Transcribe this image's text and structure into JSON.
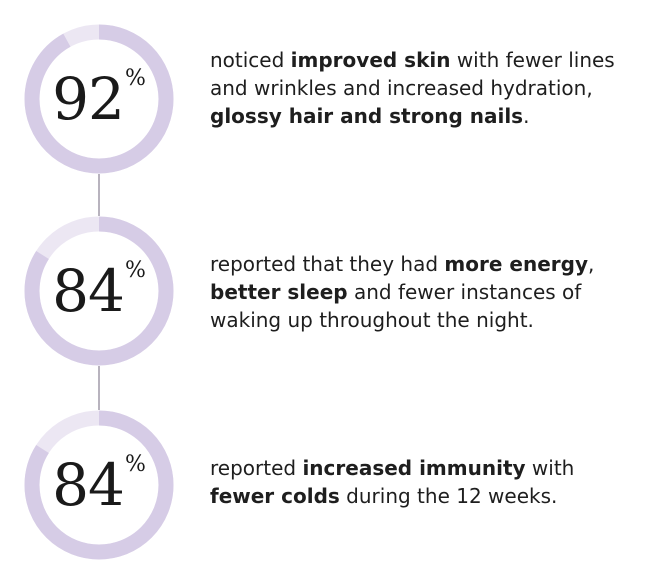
{
  "colors": {
    "ring": "#d6cce6",
    "ring_remainder": "#ece7f3",
    "connector": "#b8b3be"
  },
  "stats": [
    {
      "value": "92",
      "sign": "%",
      "progress": 0.92,
      "parts": [
        {
          "text": "noticed ",
          "bold": false
        },
        {
          "text": "improved skin",
          "bold": true
        },
        {
          "text": " with fewer lines and wrinkles and increased hydration, ",
          "bold": false
        },
        {
          "text": "glossy hair and strong nails",
          "bold": true
        },
        {
          "text": ".",
          "bold": false
        }
      ]
    },
    {
      "value": "84",
      "sign": "%",
      "progress": 0.84,
      "parts": [
        {
          "text": "reported that they had ",
          "bold": false
        },
        {
          "text": "more energy",
          "bold": true
        },
        {
          "text": ", ",
          "bold": false
        },
        {
          "text": "better sleep",
          "bold": true
        },
        {
          "text": " and fewer instances of waking up throughout the night.",
          "bold": false
        }
      ]
    },
    {
      "value": "84",
      "sign": "%",
      "progress": 0.84,
      "parts": [
        {
          "text": "reported ",
          "bold": false
        },
        {
          "text": "increased immunity",
          "bold": true
        },
        {
          "text": " with ",
          "bold": false
        },
        {
          "text": "fewer colds",
          "bold": true
        },
        {
          "text": " during the 12 weeks.",
          "bold": false
        }
      ]
    }
  ]
}
